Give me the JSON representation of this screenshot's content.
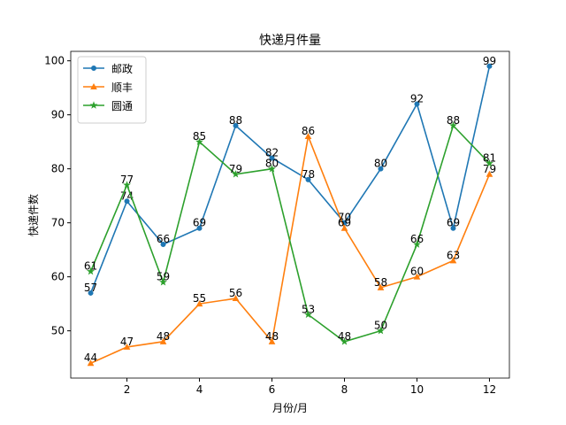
{
  "chart_data": {
    "type": "line",
    "title": "快递月件量",
    "xlabel": "月份/月",
    "ylabel": "快递件数",
    "x": [
      1,
      2,
      3,
      4,
      5,
      6,
      7,
      8,
      9,
      10,
      11,
      12
    ],
    "series": [
      {
        "name": "邮政",
        "color": "#1f77b4",
        "marker": "circle",
        "values": [
          57,
          74,
          66,
          69,
          88,
          82,
          78,
          70,
          80,
          92,
          69,
          99
        ]
      },
      {
        "name": "顺丰",
        "color": "#ff7f0e",
        "marker": "triangle",
        "values": [
          44,
          47,
          48,
          55,
          56,
          48,
          86,
          69,
          58,
          60,
          63,
          79
        ]
      },
      {
        "name": "圆通",
        "color": "#2ca02c",
        "marker": "star",
        "values": [
          61,
          77,
          59,
          85,
          79,
          80,
          53,
          48,
          50,
          66,
          88,
          81
        ]
      }
    ],
    "xlim": [
      0.45,
      12.55
    ],
    "xticks": [
      2,
      4,
      6,
      8,
      10,
      12
    ],
    "ylim": [
      41.25,
      101.75
    ],
    "yticks": [
      50,
      60,
      70,
      80,
      90,
      100
    ],
    "legend": "upper left",
    "data_labels": true
  }
}
